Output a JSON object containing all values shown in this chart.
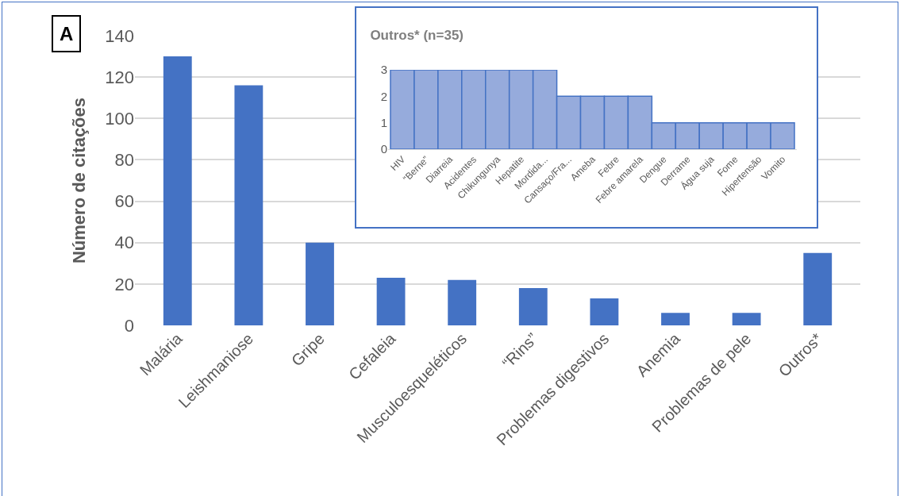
{
  "chart_data": [
    {
      "type": "bar",
      "ylabel": "Número de citações",
      "categories": [
        "Malária",
        "Leishmaniose",
        "Gripe",
        "Cefaleia",
        "Musculoesqueléticos",
        "“Rins”",
        "Problemas digestivos",
        "Anemia",
        "Problemas de pele",
        "Outros*"
      ],
      "values": [
        130,
        116,
        40,
        23,
        22,
        18,
        13,
        6,
        6,
        35
      ],
      "color": "#4472c4",
      "ylim": [
        0,
        140
      ],
      "yticks": [
        0,
        20,
        40,
        60,
        80,
        100,
        120,
        140
      ],
      "grid": "y",
      "annotations": [
        "A"
      ]
    },
    {
      "type": "bar",
      "title": "Outros* (n=35)",
      "categories": [
        "HIV",
        "“Berne”",
        "Diarreia",
        "Acidentes",
        "Chikungunya",
        "Hepatite",
        "Mordida...",
        "Cansaço/Fra...",
        "Ameba",
        "Febre",
        "Febre amarela",
        "Dengue",
        "Derrame",
        "Água suja",
        "Fome",
        "Hipertensão",
        "Vomito"
      ],
      "values": [
        3,
        3,
        3,
        3,
        3,
        3,
        3,
        2,
        2,
        2,
        2,
        1,
        1,
        1,
        1,
        1,
        1
      ],
      "color": "#96abdc",
      "ylim": [
        0,
        3
      ],
      "yticks": [
        0,
        1,
        2,
        3
      ]
    }
  ]
}
